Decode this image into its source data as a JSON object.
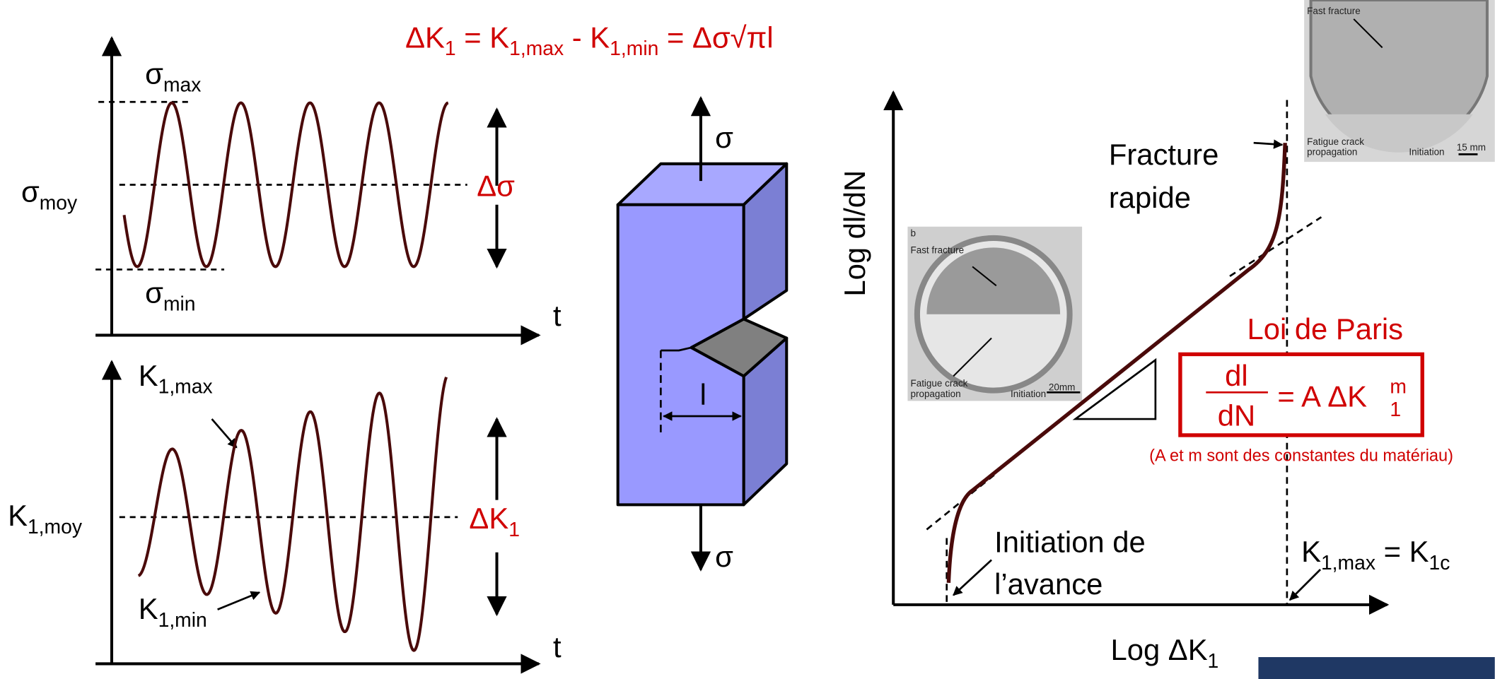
{
  "formula": {
    "parts": [
      "ΔK",
      "1",
      " = K",
      "1,max",
      " - K",
      "1,min",
      " = Δσ√πl"
    ]
  },
  "stress_plot": {
    "sigma_max": [
      "σ",
      "max"
    ],
    "sigma_min": [
      "σ",
      "min"
    ],
    "sigma_moy": [
      "σ",
      "moy"
    ],
    "delta_sigma": "Δσ",
    "t": "t"
  },
  "k_plot": {
    "k_max": [
      "K",
      "1,max"
    ],
    "k_min": [
      "K",
      "1,min"
    ],
    "k_moy": [
      "K",
      "1,moy"
    ],
    "delta_k": [
      "ΔK",
      "1"
    ],
    "t": "t"
  },
  "specimen": {
    "sigma_top": "σ",
    "sigma_bottom": "σ",
    "crack_length": "l"
  },
  "paris_plot": {
    "y_label": "Log dl/dN",
    "x_label": [
      "Log ΔK",
      "1"
    ],
    "fracture": [
      "Fracture",
      "rapide"
    ],
    "initiation": [
      "Initiation de",
      "l’avance"
    ],
    "kc": [
      "K",
      "1,max",
      " = K",
      "1c"
    ],
    "law_title": "Loi de Paris",
    "law": {
      "num": "dl",
      "den": "dN",
      "rhs": "= A ΔK",
      "sup": "m",
      "sub": "1"
    },
    "note": "(A et m sont des constantes du matériau)"
  },
  "photo1": {
    "label": "b",
    "fast": "Fast fracture",
    "fatigue": [
      "Fatigue crack",
      "propagation"
    ],
    "initiation": "Initiation",
    "scale": "20mm"
  },
  "photo2": {
    "fast": "Fast fracture",
    "fatigue": [
      "Fatigue crack",
      "propagation"
    ],
    "initiation": "Initiation",
    "scale": "15 mm"
  }
}
